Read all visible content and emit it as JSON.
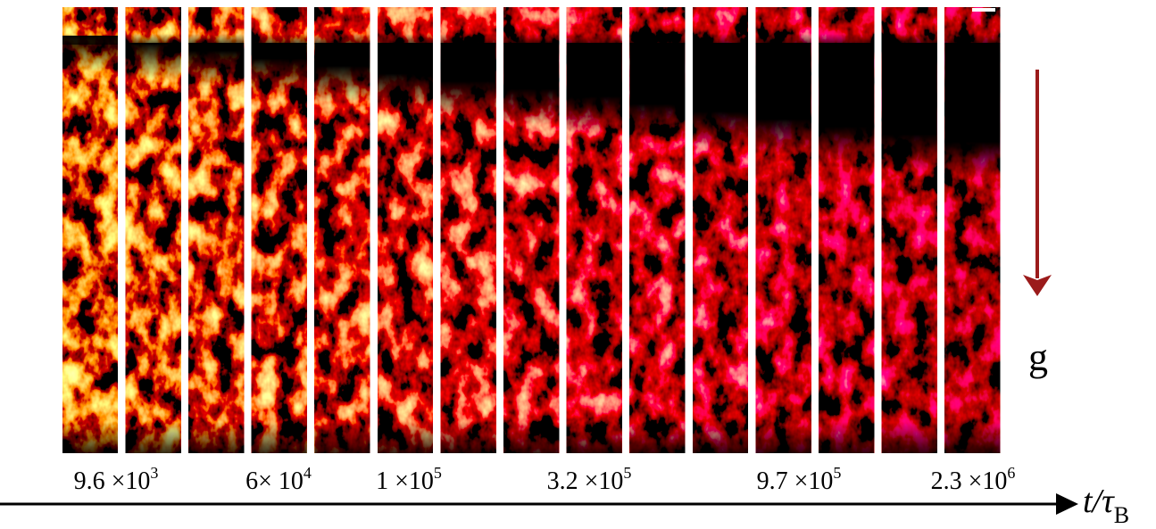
{
  "time_labels": [
    {
      "text": "9.6 ×10",
      "sup": "3"
    },
    {
      "text": "6× 10",
      "sup": "4"
    },
    {
      "text": "1 ×10",
      "sup": "5"
    },
    {
      "text": "3.2 ×10",
      "sup": "5"
    },
    {
      "text": "9.7 ×10",
      "sup": "5"
    },
    {
      "text": "2.3 ×10",
      "sup": "6"
    }
  ],
  "gravity_label": "g",
  "axis_label": {
    "text": "t/τ",
    "sub": "B"
  }
}
